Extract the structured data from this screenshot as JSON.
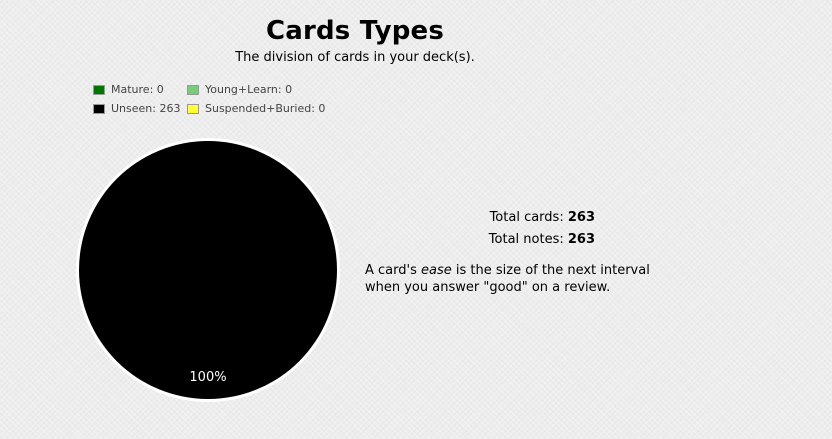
{
  "header": {
    "title": "Cards Types",
    "subtitle": "The division of cards in your deck(s)."
  },
  "legend": [
    {
      "label": "Mature: 0",
      "color": "#007700"
    },
    {
      "label": "Young+Learn: 0",
      "color": "#77cc77"
    },
    {
      "label": "Unseen: 263",
      "color": "#000000"
    },
    {
      "label": "Suspended+Buried: 0",
      "color": "#ffff33"
    }
  ],
  "chart_data": {
    "type": "pie",
    "title": "Cards Types",
    "slices": [
      {
        "label": "Mature",
        "value": 0,
        "color": "#007700"
      },
      {
        "label": "Young+Learn",
        "value": 0,
        "color": "#77cc77"
      },
      {
        "label": "Unseen",
        "value": 263,
        "color": "#000000"
      },
      {
        "label": "Suspended+Buried",
        "value": 0,
        "color": "#ffff33"
      }
    ],
    "slice_labels": [
      "100%"
    ]
  },
  "stats": {
    "total_cards_label": "Total cards:",
    "total_cards_value": "263",
    "total_notes_label": "Total notes:",
    "total_notes_value": "263"
  },
  "note": {
    "prefix": "A card's ",
    "emphasis": "ease",
    "suffix": " is the size of the next interval when you answer \"good\" on a review."
  }
}
